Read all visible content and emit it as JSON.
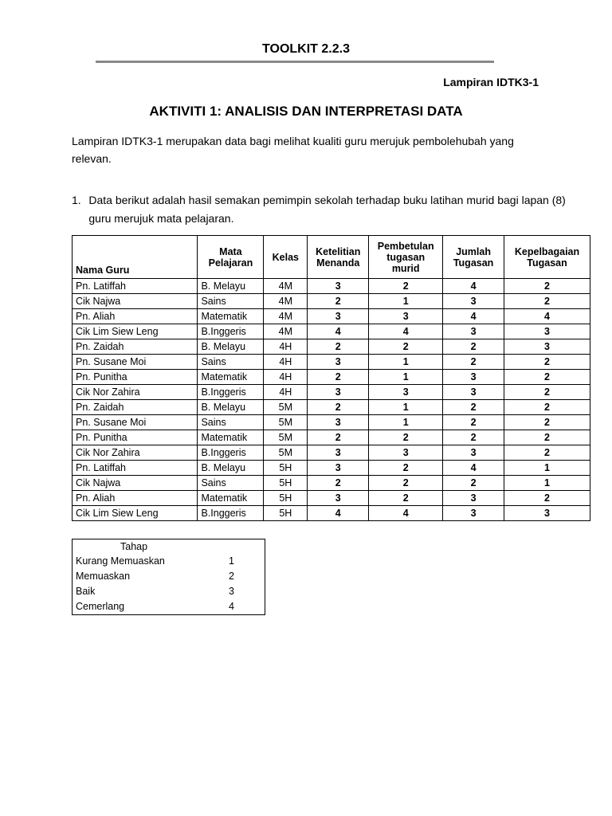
{
  "header": {
    "toolkit": "TOOLKIT 2.2.3",
    "lampiran": "Lampiran IDTK3-1",
    "title": "AKTIVITI 1: ANALISIS DAN INTERPRETASI DATA"
  },
  "intro": "Lampiran IDTK3-1 merupakan data bagi   melihat  kualiti guru merujuk pembolehubah yang relevan.",
  "question": {
    "number": "1.",
    "text": "Data berikut adalah hasil semakan pemimpin sekolah terhadap buku latihan murid bagi lapan (8) guru merujuk mata pelajaran."
  },
  "table": {
    "headers": [
      "Nama Guru",
      "Mata Pelajaran",
      "Kelas",
      "Ketelitian Menanda",
      "Pembetulan tugasan murid",
      "Jumlah Tugasan",
      "Kepelbagaian Tugasan"
    ],
    "rows": [
      [
        "Pn. Latiffah",
        "B. Melayu",
        "4M",
        "3",
        "2",
        "4",
        "2"
      ],
      [
        "Cik Najwa",
        "Sains",
        "4M",
        "2",
        "1",
        "3",
        "2"
      ],
      [
        "Pn. Aliah",
        "Matematik",
        "4M",
        "3",
        "3",
        "4",
        "4"
      ],
      [
        "Cik Lim Siew Leng",
        "B.Inggeris",
        "4M",
        "4",
        "4",
        "3",
        "3"
      ],
      [
        "Pn. Zaidah",
        "B. Melayu",
        "4H",
        "2",
        "2",
        "2",
        "3"
      ],
      [
        "Pn. Susane Moi",
        "Sains",
        "4H",
        "3",
        "1",
        "2",
        "2"
      ],
      [
        "Pn. Punitha",
        "Matematik",
        "4H",
        "2",
        "1",
        "3",
        "2"
      ],
      [
        "Cik Nor Zahira",
        "B.Inggeris",
        "4H",
        "3",
        "3",
        "3",
        "2"
      ],
      [
        "Pn. Zaidah",
        "B. Melayu",
        "5M",
        "2",
        "1",
        "2",
        "2"
      ],
      [
        "Pn. Susane Moi",
        "Sains",
        "5M",
        "3",
        "1",
        "2",
        "2"
      ],
      [
        "Pn. Punitha",
        "Matematik",
        "5M",
        "2",
        "2",
        "2",
        "2"
      ],
      [
        "Cik Nor Zahira",
        "B.Inggeris",
        "5M",
        "3",
        "3",
        "3",
        "2"
      ],
      [
        "Pn. Latiffah",
        "B. Melayu",
        "5H",
        "3",
        "2",
        "4",
        "1"
      ],
      [
        "Cik Najwa",
        "Sains",
        "5H",
        "2",
        "2",
        "2",
        "1"
      ],
      [
        "Pn. Aliah",
        "Matematik",
        "5H",
        "3",
        "2",
        "3",
        "2"
      ],
      [
        "Cik Lim Siew Leng",
        "B.Inggeris",
        "5H",
        "4",
        "4",
        "3",
        "3"
      ]
    ]
  },
  "legend": {
    "title": "Tahap",
    "items": [
      {
        "label": "Kurang Memuaskan",
        "value": "1"
      },
      {
        "label": "Memuaskan",
        "value": "2"
      },
      {
        "label": "Baik",
        "value": "3"
      },
      {
        "label": "Cemerlang",
        "value": "4"
      }
    ]
  }
}
